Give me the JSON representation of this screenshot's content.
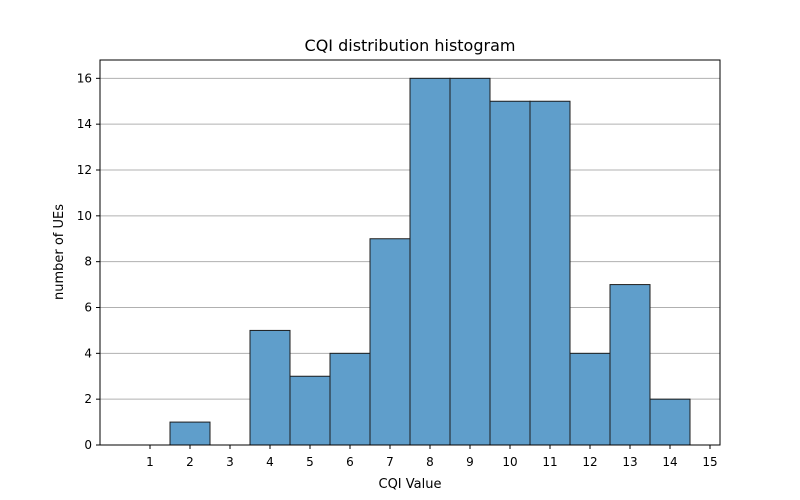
{
  "chart_data": {
    "type": "bar",
    "title": "CQI distribution histogram",
    "xlabel": "CQI Value",
    "ylabel": "number of UEs",
    "x_ticks": [
      1,
      2,
      3,
      4,
      5,
      6,
      7,
      8,
      9,
      10,
      11,
      12,
      13,
      14,
      15
    ],
    "y_ticks": [
      0,
      2,
      4,
      6,
      8,
      10,
      12,
      14,
      16
    ],
    "xlim": [
      -0.25,
      15.25
    ],
    "ylim": [
      0,
      16.8
    ],
    "grid": "y",
    "bins": [
      {
        "start": 0.5,
        "end": 1.5,
        "value": 0
      },
      {
        "start": 1.5,
        "end": 2.5,
        "value": 1
      },
      {
        "start": 2.5,
        "end": 3.5,
        "value": 0
      },
      {
        "start": 3.5,
        "end": 4.5,
        "value": 5
      },
      {
        "start": 4.5,
        "end": 5.5,
        "value": 3
      },
      {
        "start": 5.5,
        "end": 6.5,
        "value": 4
      },
      {
        "start": 6.5,
        "end": 7.5,
        "value": 9
      },
      {
        "start": 7.5,
        "end": 8.5,
        "value": 16
      },
      {
        "start": 8.5,
        "end": 9.5,
        "value": 16
      },
      {
        "start": 9.5,
        "end": 10.5,
        "value": 15
      },
      {
        "start": 10.5,
        "end": 11.5,
        "value": 15
      },
      {
        "start": 11.5,
        "end": 12.5,
        "value": 4
      },
      {
        "start": 12.5,
        "end": 13.5,
        "value": 7
      },
      {
        "start": 13.5,
        "end": 14.5,
        "value": 2
      }
    ],
    "colors": {
      "bar": "#5f9ecb",
      "edge": "#1c1c1c",
      "grid": "#b0b0b0"
    }
  }
}
